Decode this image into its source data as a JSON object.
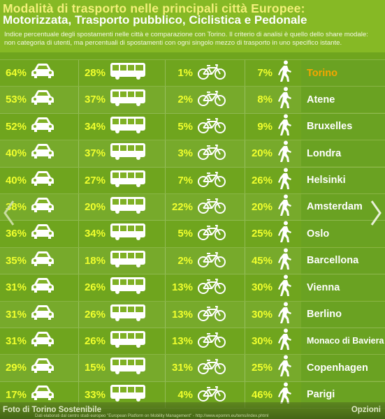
{
  "header": {
    "title": "Modalità di trasporto nelle principali città Europee:",
    "subtitle": "Motorizzata, Trasporto pubblico, Ciclistica e Pedonale",
    "description_line1": "Indice percentuale degli spostamenti nelle città e comparazione con Torino. Il criterio di analisi è quello dello share modale:",
    "description_line2": "non categoria di utenti, ma percentuali di spostamenti con ogni singolo mezzo di trasporto in uno specifico istante."
  },
  "chart_data": {
    "type": "table",
    "columns": [
      "car-icon",
      "bus-icon",
      "bicycle-icon",
      "pedestrian-icon"
    ],
    "rows": [
      {
        "city": "Torino",
        "car": "64%",
        "bus": "28%",
        "bike": "1%",
        "walk": "7%"
      },
      {
        "city": "Atene",
        "car": "53%",
        "bus": "37%",
        "bike": "2%",
        "walk": "8%"
      },
      {
        "city": "Bruxelles",
        "car": "52%",
        "bus": "34%",
        "bike": "5%",
        "walk": "9%"
      },
      {
        "city": "Londra",
        "car": "40%",
        "bus": "37%",
        "bike": "3%",
        "walk": "20%"
      },
      {
        "city": "Helsinki",
        "car": "40%",
        "bus": "27%",
        "bike": "7%",
        "walk": "26%"
      },
      {
        "city": "Amsterdam",
        "car": "38%",
        "bus": "20%",
        "bike": "22%",
        "walk": "20%"
      },
      {
        "city": "Oslo",
        "car": "36%",
        "bus": "34%",
        "bike": "5%",
        "walk": "25%"
      },
      {
        "city": "Barcellona",
        "car": "35%",
        "bus": "18%",
        "bike": "2%",
        "walk": "45%"
      },
      {
        "city": "Vienna",
        "car": "31%",
        "bus": "26%",
        "bike": "13%",
        "walk": "30%"
      },
      {
        "city": "Berlino",
        "car": "31%",
        "bus": "26%",
        "bike": "13%",
        "walk": "30%"
      },
      {
        "city": "Monaco di Baviera",
        "car": "31%",
        "bus": "26%",
        "bike": "13%",
        "walk": "30%"
      },
      {
        "city": "Copenhagen",
        "car": "29%",
        "bus": "15%",
        "bike": "31%",
        "walk": "25%"
      },
      {
        "city": "Parigi",
        "car": "17%",
        "bus": "33%",
        "bike": "4%",
        "walk": "46%"
      }
    ]
  },
  "footer": {
    "caption": "Foto di Torino Sostenibile",
    "options": "Opzioni",
    "source": "Dati elaborati dal centro studi europeo \"European Platform on Mobility Management\" - http://www.epomm.eu/tems/index.phtml"
  },
  "colors": {
    "background": "#6fa51e",
    "percent_text": "#f0ff2d",
    "highlight_city": "#f5a600",
    "title": "#f3f07a"
  }
}
